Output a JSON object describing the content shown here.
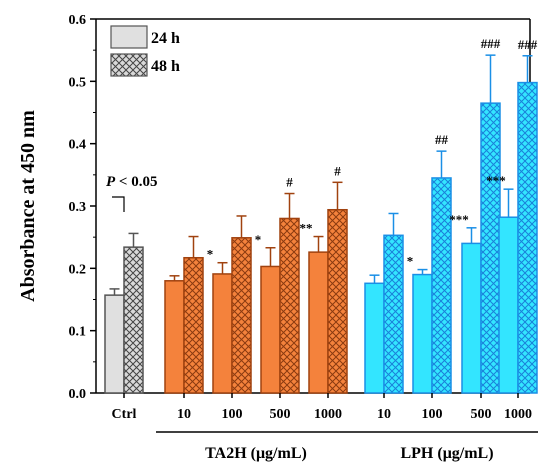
{
  "chart_data": {
    "type": "bar",
    "ylabel": "Absorbance at 450 nm",
    "ylim": [
      0,
      0.6
    ],
    "yticks": [
      "0.0",
      "0.1",
      "0.2",
      "0.3",
      "0.4",
      "0.5",
      "0.6"
    ],
    "categories": [
      "Ctrl",
      "10",
      "100",
      "500",
      "1000",
      "10",
      "100",
      "500",
      "1000"
    ],
    "groups": [
      {
        "label": "TA2H (μg/mL)",
        "first": 1,
        "last": 4
      },
      {
        "label": "LPH (μg/mL)",
        "first": 5,
        "last": 8
      }
    ],
    "series": [
      {
        "name": "24 h",
        "values": [
          0.157,
          0.18,
          0.191,
          0.203,
          0.226,
          0.176,
          0.19,
          0.24,
          0.282
        ],
        "errors": [
          0.01,
          0.008,
          0.018,
          0.03,
          0.025,
          0.013,
          0.008,
          0.025,
          0.045
        ],
        "annotations": [
          "",
          "",
          "*",
          "*",
          "**",
          "",
          "*",
          "***",
          "***"
        ]
      },
      {
        "name": "48 h",
        "values": [
          0.234,
          0.217,
          0.249,
          0.28,
          0.294,
          0.253,
          0.345,
          0.465,
          0.498
        ],
        "errors": [
          0.022,
          0.034,
          0.035,
          0.04,
          0.044,
          0.035,
          0.043,
          0.077,
          0.043
        ],
        "annotations": [
          "",
          "",
          "",
          "#",
          "#",
          "",
          "##",
          "###",
          "###"
        ]
      }
    ],
    "colors": {
      "ctrl_24h_fill": "#e0e0e0",
      "ctrl_48h_fill": "#d9d9d9",
      "ta2h_fill": "#f4823c",
      "ta2h_edge": "#a0420f",
      "lph_fill": "#33e5ff",
      "lph_edge": "#1a8fe6",
      "ctrl_edge": "#555555"
    },
    "significance": {
      "text": "P < 0.05",
      "italic_part": "P",
      "rest": " < 0.05"
    },
    "legend": {
      "position": "top-left",
      "entries": [
        "24 h",
        "48 h"
      ]
    }
  }
}
